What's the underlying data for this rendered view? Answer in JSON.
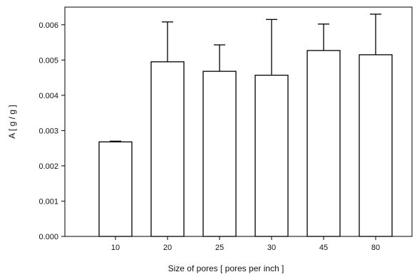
{
  "chart_data": {
    "type": "bar",
    "title": "",
    "xlabel": "Size of pores [ pores per inch ]",
    "ylabel": "A [ g / g ]",
    "categories": [
      "10",
      "20",
      "25",
      "30",
      "45",
      "80"
    ],
    "series": [
      {
        "values": [
          0.00268,
          0.00495,
          0.00468,
          0.00457,
          0.00527,
          0.00515
        ],
        "error_plus": [
          2e-05,
          0.00113,
          0.00075,
          0.00158,
          0.00075,
          0.00115
        ]
      }
    ],
    "ylim": [
      0,
      0.0065
    ],
    "yticks": [
      "0.000",
      "0.001",
      "0.002",
      "0.003",
      "0.004",
      "0.005",
      "0.006"
    ],
    "grid": false,
    "legend": "none",
    "colors": {
      "bar_fill": "#ffffff",
      "bar_stroke": "#000000",
      "axis": "#000000"
    }
  }
}
